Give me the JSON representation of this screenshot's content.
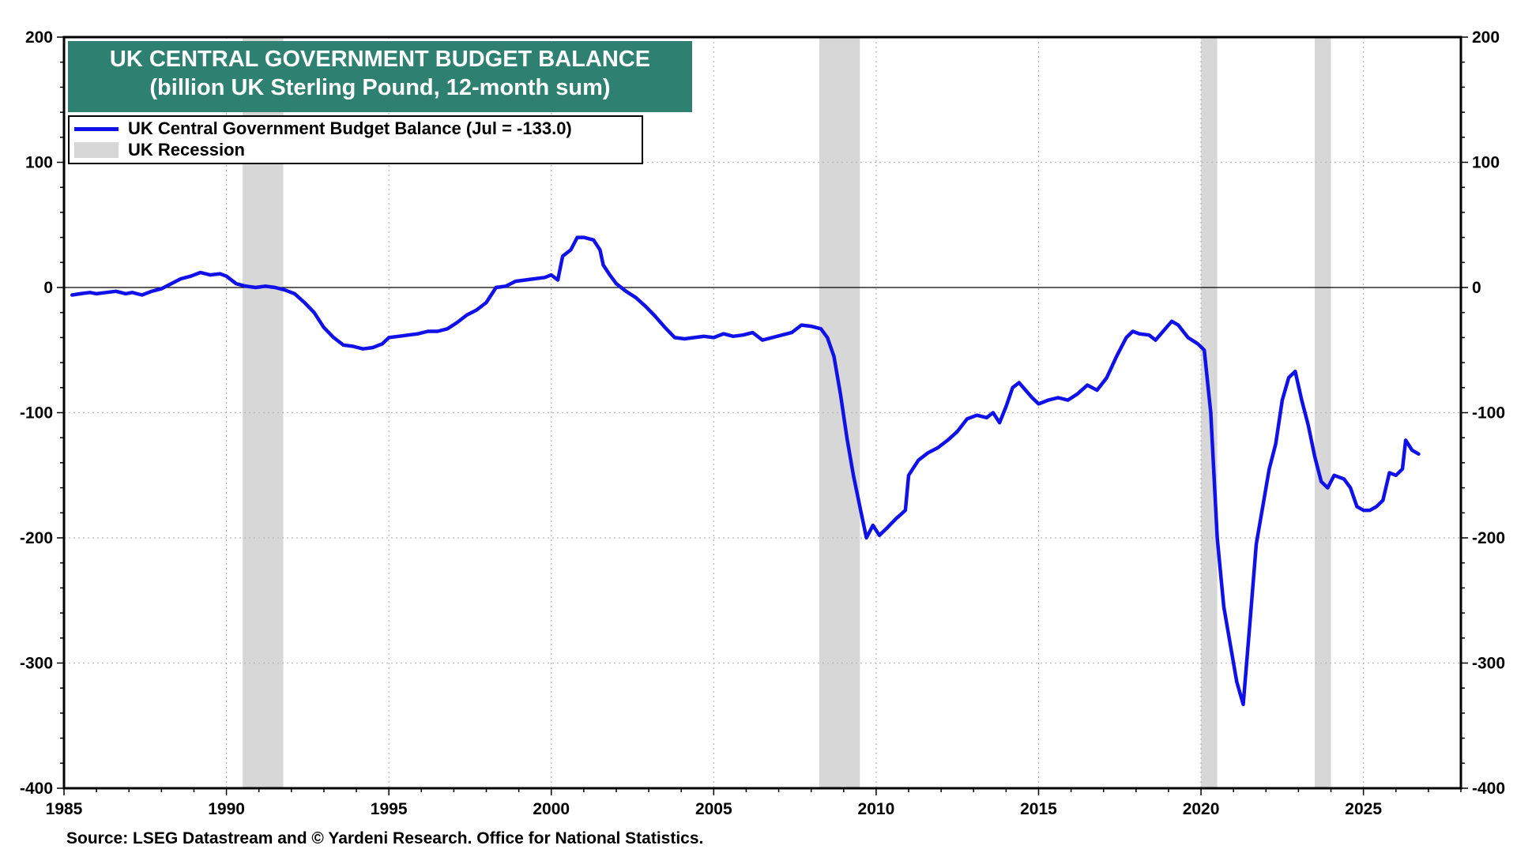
{
  "chart_data": {
    "type": "line",
    "title": "UK CENTRAL GOVERNMENT BUDGET BALANCE",
    "subtitle": "(billion UK Sterling Pound, 12-month sum)",
    "xlabel": "",
    "ylabel": "",
    "xlim": [
      1985,
      2028
    ],
    "ylim": [
      -400,
      200
    ],
    "x_ticks": [
      1985,
      1990,
      1995,
      2000,
      2005,
      2010,
      2015,
      2020,
      2025
    ],
    "y_ticks": [
      200,
      100,
      0,
      -100,
      -200,
      -300,
      -400
    ],
    "grid": true,
    "legend_position": "top-left",
    "colors": {
      "series": "#1010e8",
      "recession": "#d7d7d7",
      "title_bg": "#2e8070"
    },
    "legend": {
      "series_label": "UK Central Government Budget Balance (Jul = -133.0)",
      "recession_label": "UK Recession"
    },
    "recessions": [
      {
        "start": 1990.5,
        "end": 1991.75
      },
      {
        "start": 2008.25,
        "end": 2009.5
      },
      {
        "start": 2020.0,
        "end": 2020.5
      },
      {
        "start": 2023.5,
        "end": 2024.0
      }
    ],
    "series": [
      {
        "name": "UK Central Government Budget Balance",
        "points": [
          [
            1985.25,
            -6
          ],
          [
            1985.5,
            -5
          ],
          [
            1985.8,
            -4
          ],
          [
            1986.0,
            -5
          ],
          [
            1986.3,
            -4
          ],
          [
            1986.6,
            -3
          ],
          [
            1986.9,
            -5
          ],
          [
            1987.1,
            -4
          ],
          [
            1987.4,
            -6
          ],
          [
            1987.7,
            -3
          ],
          [
            1988.0,
            -1
          ],
          [
            1988.3,
            3
          ],
          [
            1988.6,
            7
          ],
          [
            1988.9,
            9
          ],
          [
            1989.2,
            12
          ],
          [
            1989.5,
            10
          ],
          [
            1989.8,
            11
          ],
          [
            1990.0,
            9
          ],
          [
            1990.3,
            3
          ],
          [
            1990.6,
            1
          ],
          [
            1990.9,
            0
          ],
          [
            1991.2,
            1
          ],
          [
            1991.5,
            0
          ],
          [
            1991.8,
            -2
          ],
          [
            1992.1,
            -5
          ],
          [
            1992.4,
            -12
          ],
          [
            1992.7,
            -20
          ],
          [
            1993.0,
            -32
          ],
          [
            1993.3,
            -40
          ],
          [
            1993.6,
            -46
          ],
          [
            1993.9,
            -47
          ],
          [
            1994.2,
            -49
          ],
          [
            1994.5,
            -48
          ],
          [
            1994.8,
            -45
          ],
          [
            1995.0,
            -40
          ],
          [
            1995.3,
            -39
          ],
          [
            1995.6,
            -38
          ],
          [
            1995.9,
            -37
          ],
          [
            1996.2,
            -35
          ],
          [
            1996.5,
            -35
          ],
          [
            1996.8,
            -33
          ],
          [
            1997.1,
            -28
          ],
          [
            1997.4,
            -22
          ],
          [
            1997.7,
            -18
          ],
          [
            1998.0,
            -12
          ],
          [
            1998.3,
            0
          ],
          [
            1998.6,
            1
          ],
          [
            1998.9,
            5
          ],
          [
            1999.2,
            6
          ],
          [
            1999.5,
            7
          ],
          [
            1999.8,
            8
          ],
          [
            2000.0,
            10
          ],
          [
            2000.2,
            6
          ],
          [
            2000.35,
            25
          ],
          [
            2000.6,
            30
          ],
          [
            2000.8,
            40
          ],
          [
            2001.0,
            40
          ],
          [
            2001.3,
            38
          ],
          [
            2001.5,
            30
          ],
          [
            2001.6,
            18
          ],
          [
            2001.8,
            10
          ],
          [
            2002.0,
            3
          ],
          [
            2002.3,
            -3
          ],
          [
            2002.6,
            -8
          ],
          [
            2002.9,
            -15
          ],
          [
            2003.2,
            -23
          ],
          [
            2003.5,
            -32
          ],
          [
            2003.8,
            -40
          ],
          [
            2004.1,
            -41
          ],
          [
            2004.4,
            -40
          ],
          [
            2004.7,
            -39
          ],
          [
            2005.0,
            -40
          ],
          [
            2005.3,
            -37
          ],
          [
            2005.6,
            -39
          ],
          [
            2005.9,
            -38
          ],
          [
            2006.2,
            -36
          ],
          [
            2006.5,
            -42
          ],
          [
            2006.8,
            -40
          ],
          [
            2007.1,
            -38
          ],
          [
            2007.4,
            -36
          ],
          [
            2007.7,
            -30
          ],
          [
            2008.0,
            -31
          ],
          [
            2008.3,
            -33
          ],
          [
            2008.5,
            -40
          ],
          [
            2008.7,
            -55
          ],
          [
            2008.9,
            -85
          ],
          [
            2009.1,
            -120
          ],
          [
            2009.3,
            -150
          ],
          [
            2009.5,
            -175
          ],
          [
            2009.7,
            -200
          ],
          [
            2009.9,
            -190
          ],
          [
            2010.1,
            -198
          ],
          [
            2010.3,
            -193
          ],
          [
            2010.6,
            -185
          ],
          [
            2010.9,
            -178
          ],
          [
            2011.0,
            -150
          ],
          [
            2011.3,
            -138
          ],
          [
            2011.6,
            -132
          ],
          [
            2011.9,
            -128
          ],
          [
            2012.2,
            -122
          ],
          [
            2012.5,
            -115
          ],
          [
            2012.8,
            -105
          ],
          [
            2013.1,
            -102
          ],
          [
            2013.4,
            -104
          ],
          [
            2013.6,
            -100
          ],
          [
            2013.8,
            -108
          ],
          [
            2014.0,
            -95
          ],
          [
            2014.2,
            -80
          ],
          [
            2014.4,
            -76
          ],
          [
            2014.6,
            -82
          ],
          [
            2014.8,
            -88
          ],
          [
            2015.0,
            -93
          ],
          [
            2015.3,
            -90
          ],
          [
            2015.6,
            -88
          ],
          [
            2015.9,
            -90
          ],
          [
            2016.2,
            -85
          ],
          [
            2016.5,
            -78
          ],
          [
            2016.8,
            -82
          ],
          [
            2017.1,
            -72
          ],
          [
            2017.4,
            -55
          ],
          [
            2017.7,
            -40
          ],
          [
            2017.9,
            -35
          ],
          [
            2018.1,
            -37
          ],
          [
            2018.4,
            -38
          ],
          [
            2018.6,
            -42
          ],
          [
            2018.9,
            -33
          ],
          [
            2019.1,
            -27
          ],
          [
            2019.3,
            -30
          ],
          [
            2019.6,
            -40
          ],
          [
            2019.9,
            -45
          ],
          [
            2020.1,
            -50
          ],
          [
            2020.3,
            -100
          ],
          [
            2020.5,
            -200
          ],
          [
            2020.7,
            -255
          ],
          [
            2020.9,
            -285
          ],
          [
            2021.1,
            -315
          ],
          [
            2021.3,
            -333
          ],
          [
            2021.5,
            -270
          ],
          [
            2021.7,
            -205
          ],
          [
            2021.9,
            -175
          ],
          [
            2022.1,
            -145
          ],
          [
            2022.3,
            -125
          ],
          [
            2022.5,
            -90
          ],
          [
            2022.7,
            -72
          ],
          [
            2022.9,
            -67
          ],
          [
            2023.1,
            -90
          ],
          [
            2023.3,
            -110
          ],
          [
            2023.5,
            -135
          ],
          [
            2023.7,
            -155
          ],
          [
            2023.9,
            -160
          ],
          [
            2024.1,
            -150
          ],
          [
            2024.4,
            -153
          ],
          [
            2024.6,
            -160
          ],
          [
            2024.8,
            -175
          ],
          [
            2025.0,
            -178
          ],
          [
            2025.2,
            -178
          ],
          [
            2025.4,
            -175
          ],
          [
            2025.6,
            -170
          ],
          [
            2025.8,
            -148
          ],
          [
            2026.0,
            -150
          ],
          [
            2026.2,
            -145
          ],
          [
            2026.3,
            -122
          ],
          [
            2026.5,
            -130
          ],
          [
            2026.7,
            -133
          ]
        ]
      }
    ],
    "source": "Source: LSEG Datastream and © Yardeni Research. Office for National Statistics."
  }
}
